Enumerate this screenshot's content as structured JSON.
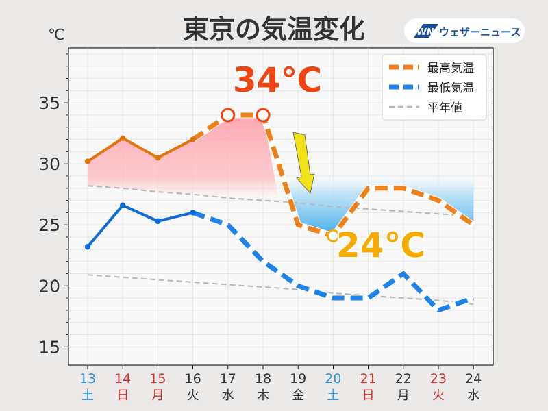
{
  "title": "東京の気温変化",
  "unit_label": "℃",
  "brand": {
    "logo_text": "WN",
    "name": "ウェザーニュース",
    "color": "#1a4ea1"
  },
  "annotations": {
    "max_callout": "34℃",
    "min_callout": "24℃",
    "max_callout_color": "#f04412",
    "min_callout_color": "#f5ab00",
    "arrow_color": "#f2e21a"
  },
  "colors": {
    "high": "#f08019",
    "high_solid": "#e0740f",
    "low": "#1f82e8",
    "low_solid": "#0d6ad8",
    "normal": "#b8b8b8",
    "weekday": "#333333",
    "saturday": "#2a8fd8",
    "sunday_holiday": "#d62e2e"
  },
  "chart_data": {
    "type": "line",
    "title": "東京の気温変化",
    "ylabel": "℃",
    "ylim": [
      13.5,
      39.5
    ],
    "yticks": [
      15,
      20,
      25,
      30,
      35
    ],
    "grid": true,
    "legend_position": "top-right",
    "categories": [
      {
        "day": "13",
        "weekday": "土",
        "type": "saturday"
      },
      {
        "day": "14",
        "weekday": "日",
        "type": "sunday_holiday"
      },
      {
        "day": "15",
        "weekday": "月",
        "type": "sunday_holiday"
      },
      {
        "day": "16",
        "weekday": "火",
        "type": "weekday"
      },
      {
        "day": "17",
        "weekday": "水",
        "type": "weekday"
      },
      {
        "day": "18",
        "weekday": "木",
        "type": "weekday"
      },
      {
        "day": "19",
        "weekday": "金",
        "type": "weekday"
      },
      {
        "day": "20",
        "weekday": "土",
        "type": "saturday"
      },
      {
        "day": "21",
        "weekday": "日",
        "type": "sunday_holiday"
      },
      {
        "day": "22",
        "weekday": "月",
        "type": "weekday"
      },
      {
        "day": "23",
        "weekday": "火",
        "type": "sunday_holiday"
      },
      {
        "day": "24",
        "weekday": "水",
        "type": "weekday"
      }
    ],
    "series": [
      {
        "name": "最高気温",
        "values": [
          30.2,
          32.1,
          30.5,
          32.0,
          34.0,
          34.0,
          25.0,
          24.1,
          28.0,
          28.0,
          27.0,
          25.0
        ],
        "observed_through_index": 3,
        "highlight_points": [
          4,
          5,
          7
        ]
      },
      {
        "name": "最低気温",
        "values": [
          23.2,
          26.6,
          25.3,
          26.0,
          25.0,
          22.0,
          20.0,
          19.0,
          19.0,
          21.0,
          18.0,
          19.0
        ],
        "observed_through_index": 3
      },
      {
        "name": "平年値",
        "values": [
          28.2,
          28.0,
          27.7,
          27.5,
          27.2,
          27.0,
          26.8,
          26.5,
          26.3,
          26.1,
          25.9,
          25.7
        ],
        "values_low": [
          20.9,
          20.7,
          20.5,
          20.3,
          20.1,
          19.9,
          19.7,
          19.4,
          19.2,
          19.0,
          18.8,
          18.5
        ]
      }
    ]
  }
}
